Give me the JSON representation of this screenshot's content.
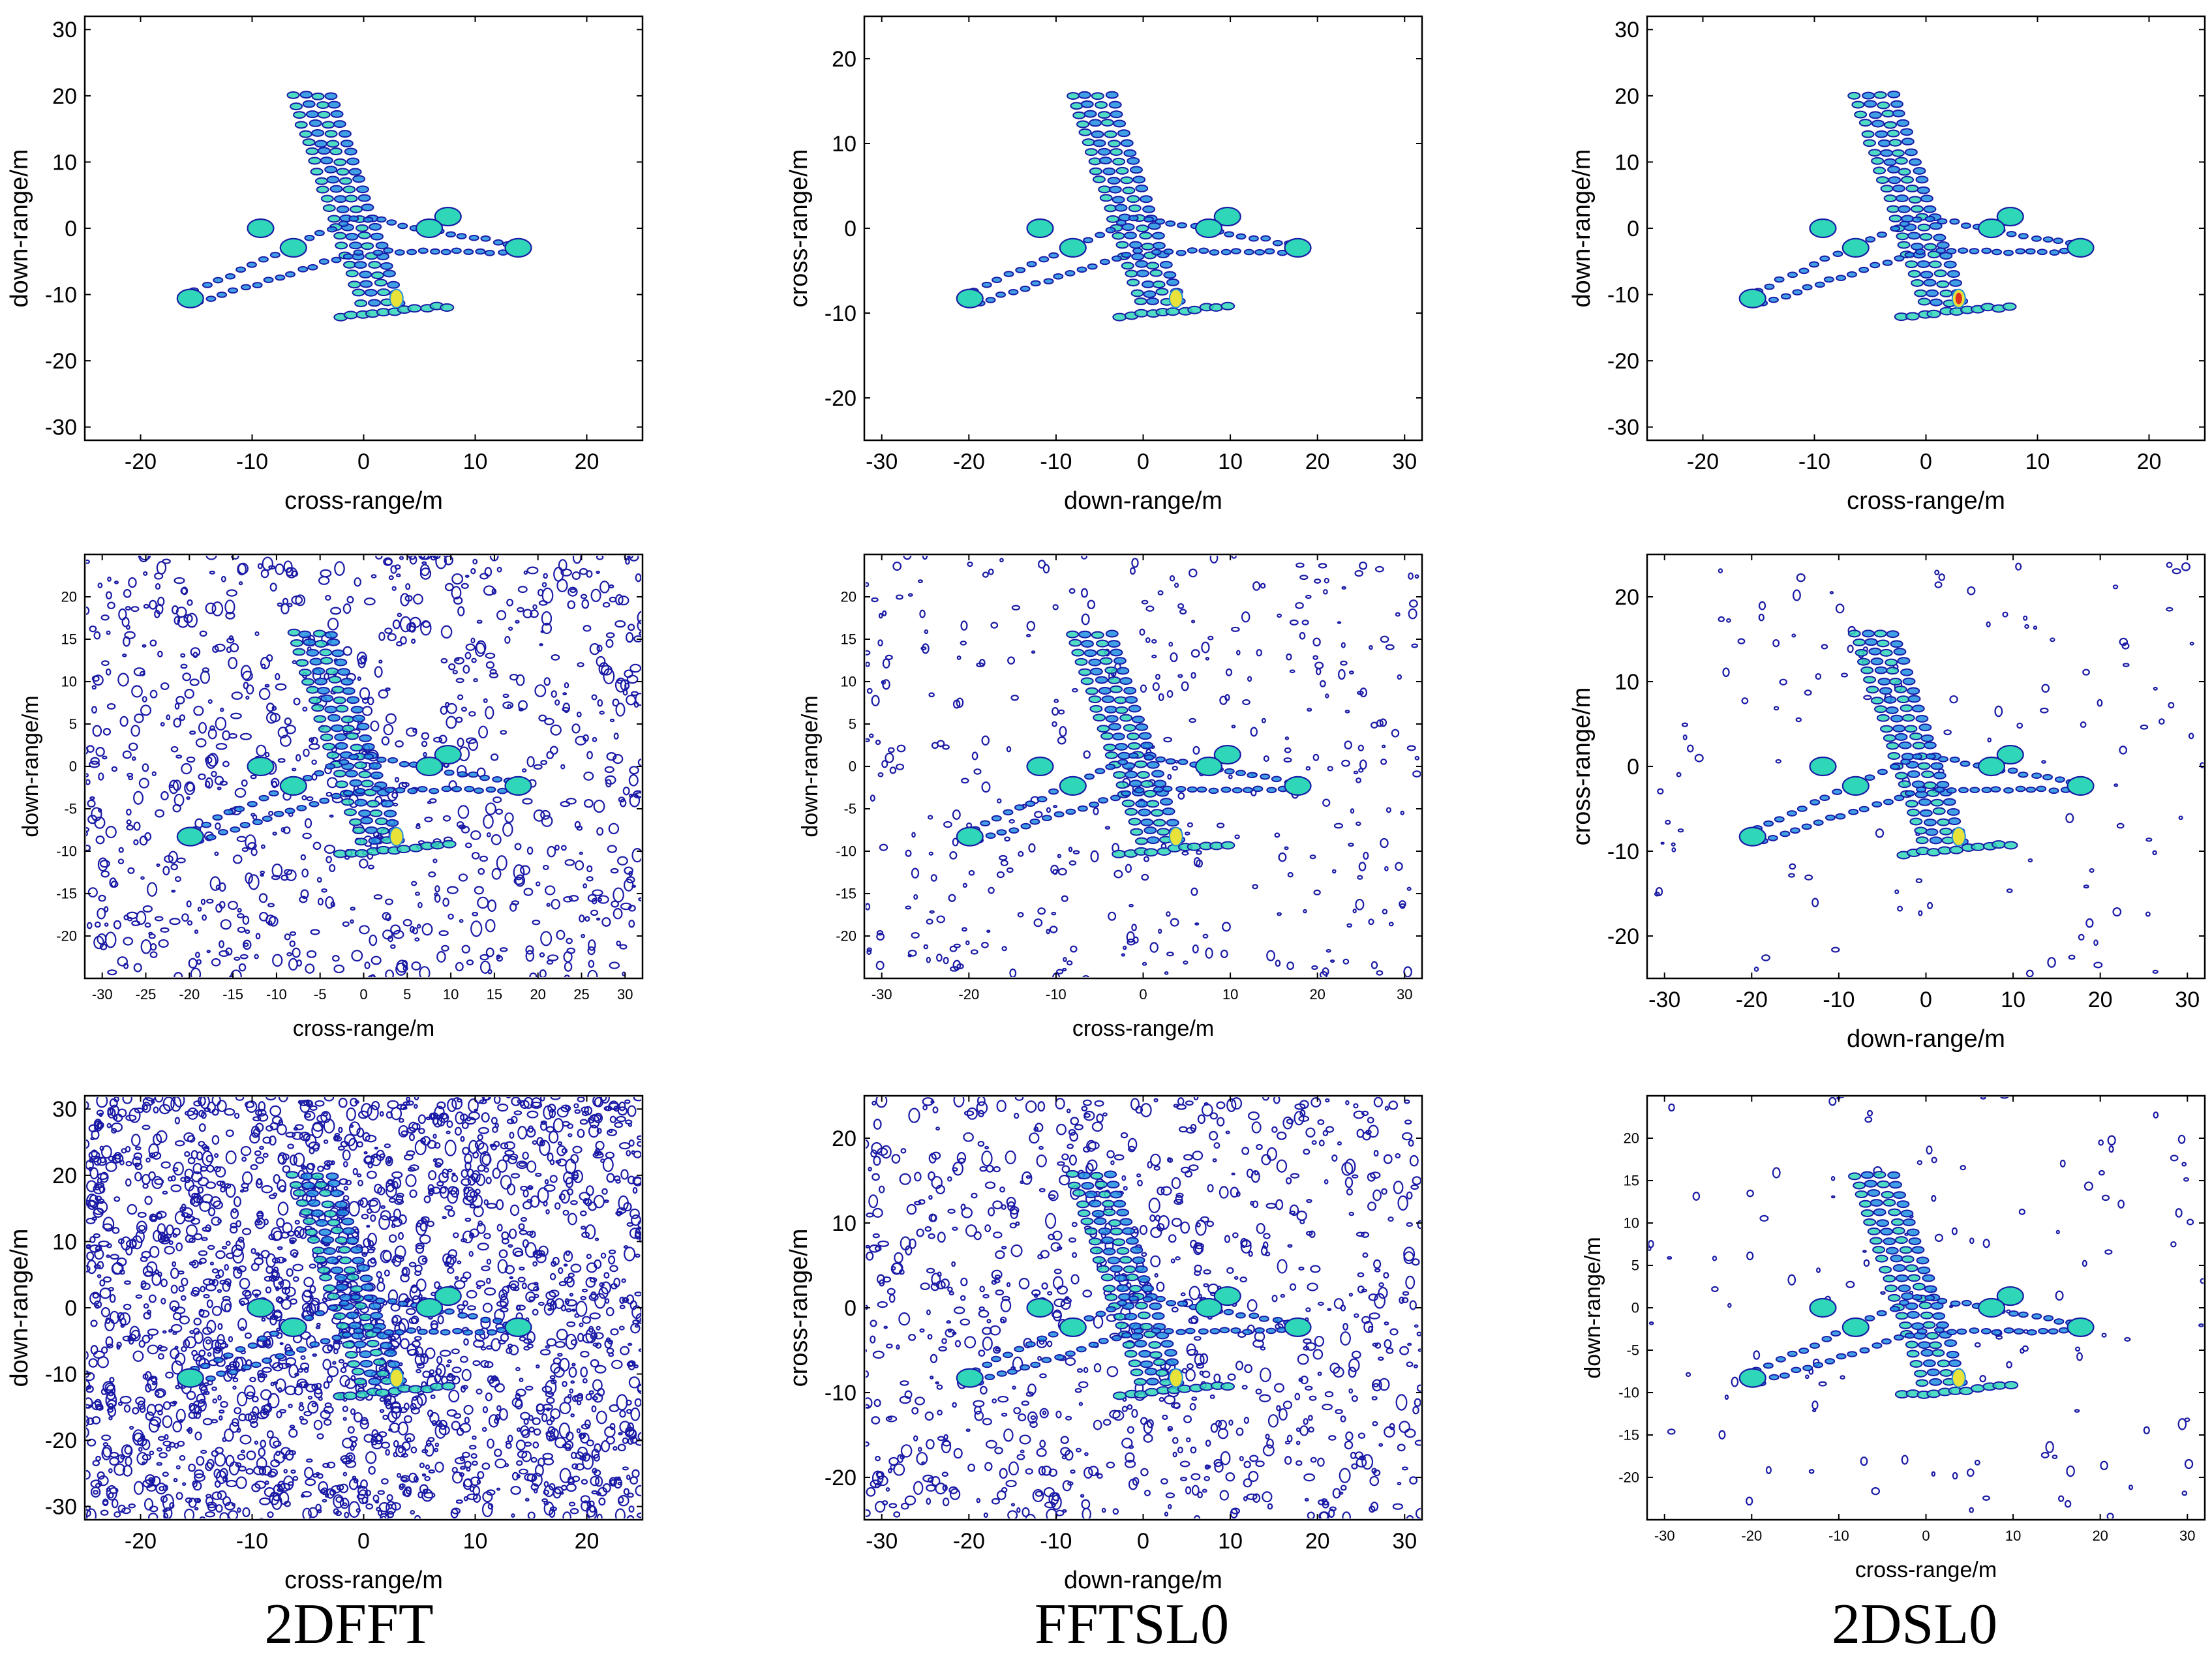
{
  "figure": {
    "columns": [
      "2DFFT",
      "FFTSL0",
      "2DSL0"
    ],
    "colors": {
      "contour_low": "#1a1aa6",
      "contour_mid": "#1f8fe0",
      "contour_high": "#2fd6b8",
      "peak_yellow": "#e8e23a",
      "peak_red": "#e0301e",
      "axis": "#000000",
      "tick_text": "#000000",
      "background": "#ffffff"
    }
  },
  "chart_data": [
    {
      "type": "heatmap",
      "row": 1,
      "column": "2DFFT",
      "xlabel": "cross-range/m",
      "ylabel": "down-range/m",
      "xlim": [
        -25,
        25
      ],
      "ylim": [
        -32,
        32
      ],
      "xticks": [
        -20,
        -10,
        0,
        10,
        20
      ],
      "yticks": [
        -30,
        -20,
        -10,
        0,
        10,
        20,
        30
      ],
      "noise_level": 0,
      "grid": false
    },
    {
      "type": "heatmap",
      "row": 1,
      "column": "FFTSL0",
      "xlabel": "down-range/m",
      "ylabel": "cross-range/m",
      "xlim": [
        -32,
        32
      ],
      "ylim": [
        -25,
        25
      ],
      "xticks": [
        -30,
        -20,
        -10,
        0,
        10,
        20,
        30
      ],
      "yticks": [
        -20,
        -10,
        0,
        10,
        20
      ],
      "noise_level": 0,
      "grid": false
    },
    {
      "type": "heatmap",
      "row": 1,
      "column": "2DSL0",
      "xlabel": "cross-range/m",
      "ylabel": "down-range/m",
      "xlim": [
        -25,
        25
      ],
      "ylim": [
        -32,
        32
      ],
      "xticks": [
        -20,
        -10,
        0,
        10,
        20
      ],
      "yticks": [
        -30,
        -20,
        -10,
        0,
        10,
        20,
        30
      ],
      "noise_level": 0,
      "grid": false
    },
    {
      "type": "heatmap",
      "row": 2,
      "column": "2DFFT",
      "xlabel": "cross-range/m",
      "ylabel": "down-range/m",
      "xlim": [
        -32,
        32
      ],
      "ylim": [
        -25,
        25
      ],
      "xticks": [
        -30,
        -25,
        -20,
        -15,
        -10,
        -5,
        0,
        5,
        10,
        15,
        20,
        25,
        30
      ],
      "yticks": [
        -20,
        -15,
        -10,
        -5,
        0,
        5,
        10,
        15,
        20
      ],
      "noise_level": 3,
      "grid": false
    },
    {
      "type": "heatmap",
      "row": 2,
      "column": "FFTSL0",
      "xlabel": "cross-range/m",
      "ylabel": "down-range/m",
      "xlim": [
        -32,
        32
      ],
      "ylim": [
        -25,
        25
      ],
      "xticks": [
        -30,
        -20,
        -10,
        0,
        10,
        20,
        30
      ],
      "yticks": [
        -20,
        -15,
        -10,
        -5,
        0,
        5,
        10,
        15,
        20
      ],
      "noise_level": 2,
      "grid": false
    },
    {
      "type": "heatmap",
      "row": 2,
      "column": "2DSL0",
      "xlabel": "down-range/m",
      "ylabel": "cross-range/m",
      "xlim": [
        -32,
        32
      ],
      "ylim": [
        -25,
        25
      ],
      "xticks": [
        -30,
        -20,
        -10,
        0,
        10,
        20,
        30
      ],
      "yticks": [
        -20,
        -10,
        0,
        10,
        20
      ],
      "noise_level": 1,
      "grid": false
    },
    {
      "type": "heatmap",
      "row": 3,
      "column": "2DFFT",
      "xlabel": "cross-range/m",
      "ylabel": "down-range/m",
      "xlim": [
        -25,
        25
      ],
      "ylim": [
        -32,
        32
      ],
      "xticks": [
        -20,
        -10,
        0,
        10,
        20
      ],
      "yticks": [
        -30,
        -20,
        -10,
        0,
        10,
        20,
        30
      ],
      "noise_level": 4,
      "grid": false
    },
    {
      "type": "heatmap",
      "row": 3,
      "column": "FFTSL0",
      "xlabel": "down-range/m",
      "ylabel": "cross-range/m",
      "xlim": [
        -32,
        32
      ],
      "ylim": [
        -25,
        25
      ],
      "xticks": [
        -30,
        -20,
        -10,
        0,
        10,
        20,
        30
      ],
      "yticks": [
        -20,
        -10,
        0,
        10,
        20
      ],
      "noise_level": 3,
      "grid": false
    },
    {
      "type": "heatmap",
      "row": 3,
      "column": "2DSL0",
      "xlabel": "cross-range/m",
      "ylabel": "down-range/m",
      "xlim": [
        -32,
        32
      ],
      "ylim": [
        -25,
        25
      ],
      "xticks": [
        -30,
        -20,
        -10,
        0,
        10,
        20,
        30
      ],
      "yticks": [
        -20,
        -15,
        -10,
        -5,
        0,
        5,
        10,
        15,
        20
      ],
      "noise_level": 1,
      "grid": false
    }
  ]
}
